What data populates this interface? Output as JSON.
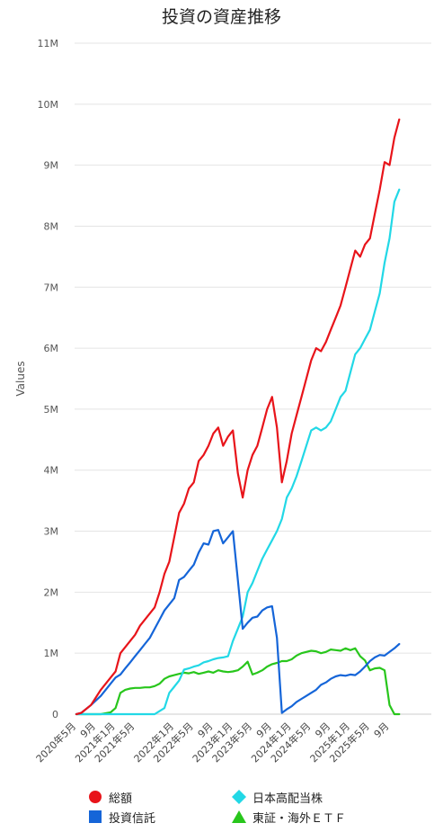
{
  "chart_data": {
    "type": "line",
    "title": "投資の資産推移",
    "ylabel": "Values",
    "xlabel": "",
    "ylim": [
      0,
      11000000
    ],
    "y_ticks": [
      "0",
      "1M",
      "2M",
      "3M",
      "4M",
      "5M",
      "6M",
      "7M",
      "8M",
      "9M",
      "10M",
      "11M"
    ],
    "x_tick_labels": [
      "2020年5月",
      "9月",
      "2021年1月",
      "2021年5月",
      "2022年1月",
      "2022年5月",
      "9月",
      "2023年1月",
      "2023年5月",
      "9月",
      "2024年1月",
      "2024年5月",
      "9月",
      "2025年1月",
      "2025年5月",
      "9月"
    ],
    "x_tick_month_index": [
      0,
      4,
      8,
      12,
      20,
      24,
      28,
      32,
      36,
      40,
      44,
      48,
      52,
      56,
      60,
      64
    ],
    "x_range_months": [
      0,
      70
    ],
    "grid": true,
    "legend_position": "bottom",
    "series": [
      {
        "name": "総額",
        "color": "#e8141a",
        "marker": "circle",
        "values": [
          [
            0,
            0
          ],
          [
            1,
            20000
          ],
          [
            3,
            150000
          ],
          [
            5,
            400000
          ],
          [
            7,
            600000
          ],
          [
            8,
            700000
          ],
          [
            9,
            1000000
          ],
          [
            10,
            1100000
          ],
          [
            11,
            1200000
          ],
          [
            12,
            1300000
          ],
          [
            13,
            1450000
          ],
          [
            14,
            1550000
          ],
          [
            15,
            1650000
          ],
          [
            16,
            1750000
          ],
          [
            17,
            2000000
          ],
          [
            18,
            2300000
          ],
          [
            19,
            2500000
          ],
          [
            20,
            2900000
          ],
          [
            21,
            3300000
          ],
          [
            22,
            3450000
          ],
          [
            23,
            3700000
          ],
          [
            24,
            3800000
          ],
          [
            25,
            4150000
          ],
          [
            26,
            4250000
          ],
          [
            27,
            4400000
          ],
          [
            28,
            4600000
          ],
          [
            29,
            4700000
          ],
          [
            30,
            4400000
          ],
          [
            31,
            4550000
          ],
          [
            32,
            4650000
          ],
          [
            33,
            3950000
          ],
          [
            34,
            3550000
          ],
          [
            35,
            4000000
          ],
          [
            36,
            4250000
          ],
          [
            37,
            4400000
          ],
          [
            38,
            4700000
          ],
          [
            39,
            5000000
          ],
          [
            40,
            5200000
          ],
          [
            41,
            4700000
          ],
          [
            42,
            3800000
          ],
          [
            43,
            4150000
          ],
          [
            44,
            4600000
          ],
          [
            45,
            4900000
          ],
          [
            46,
            5200000
          ],
          [
            47,
            5500000
          ],
          [
            48,
            5800000
          ],
          [
            49,
            6000000
          ],
          [
            50,
            5950000
          ],
          [
            51,
            6100000
          ],
          [
            52,
            6300000
          ],
          [
            53,
            6500000
          ],
          [
            54,
            6700000
          ],
          [
            55,
            7000000
          ],
          [
            56,
            7300000
          ],
          [
            57,
            7600000
          ],
          [
            58,
            7500000
          ],
          [
            59,
            7700000
          ],
          [
            60,
            7800000
          ],
          [
            61,
            8200000
          ],
          [
            62,
            8600000
          ],
          [
            63,
            9050000
          ],
          [
            64,
            9000000
          ],
          [
            65,
            9450000
          ],
          [
            66,
            9750000
          ]
        ]
      },
      {
        "name": "投資信託",
        "color": "#1565d8",
        "marker": "square",
        "values": [
          [
            0,
            0
          ],
          [
            1,
            20000
          ],
          [
            3,
            150000
          ],
          [
            5,
            300000
          ],
          [
            7,
            500000
          ],
          [
            8,
            600000
          ],
          [
            9,
            650000
          ],
          [
            10,
            750000
          ],
          [
            11,
            850000
          ],
          [
            12,
            950000
          ],
          [
            13,
            1050000
          ],
          [
            14,
            1150000
          ],
          [
            15,
            1250000
          ],
          [
            16,
            1400000
          ],
          [
            17,
            1550000
          ],
          [
            18,
            1700000
          ],
          [
            19,
            1800000
          ],
          [
            20,
            1900000
          ],
          [
            21,
            2200000
          ],
          [
            22,
            2250000
          ],
          [
            23,
            2350000
          ],
          [
            24,
            2450000
          ],
          [
            25,
            2650000
          ],
          [
            26,
            2800000
          ],
          [
            27,
            2780000
          ],
          [
            28,
            3000000
          ],
          [
            29,
            3020000
          ],
          [
            30,
            2800000
          ],
          [
            31,
            2900000
          ],
          [
            32,
            3000000
          ],
          [
            33,
            2200000
          ],
          [
            34,
            1400000
          ],
          [
            35,
            1500000
          ],
          [
            36,
            1580000
          ],
          [
            37,
            1600000
          ],
          [
            38,
            1700000
          ],
          [
            39,
            1750000
          ],
          [
            40,
            1770000
          ],
          [
            41,
            1250000
          ],
          [
            42,
            20000
          ],
          [
            43,
            80000
          ],
          [
            44,
            130000
          ],
          [
            45,
            200000
          ],
          [
            46,
            250000
          ],
          [
            47,
            300000
          ],
          [
            48,
            350000
          ],
          [
            49,
            400000
          ],
          [
            50,
            480000
          ],
          [
            51,
            520000
          ],
          [
            52,
            580000
          ],
          [
            53,
            620000
          ],
          [
            54,
            640000
          ],
          [
            55,
            630000
          ],
          [
            56,
            650000
          ],
          [
            57,
            640000
          ],
          [
            58,
            700000
          ],
          [
            59,
            780000
          ],
          [
            60,
            870000
          ],
          [
            61,
            930000
          ],
          [
            62,
            970000
          ],
          [
            63,
            960000
          ],
          [
            64,
            1020000
          ],
          [
            65,
            1080000
          ],
          [
            66,
            1150000
          ]
        ]
      },
      {
        "name": "日本高配当株",
        "color": "#22d8e6",
        "marker": "diamond",
        "values": [
          [
            0,
            0
          ],
          [
            14,
            0
          ],
          [
            16,
            0
          ],
          [
            17,
            50000
          ],
          [
            18,
            100000
          ],
          [
            19,
            350000
          ],
          [
            20,
            450000
          ],
          [
            21,
            550000
          ],
          [
            22,
            730000
          ],
          [
            23,
            750000
          ],
          [
            24,
            780000
          ],
          [
            25,
            800000
          ],
          [
            26,
            850000
          ],
          [
            27,
            870000
          ],
          [
            28,
            900000
          ],
          [
            29,
            920000
          ],
          [
            30,
            930000
          ],
          [
            31,
            950000
          ],
          [
            32,
            1200000
          ],
          [
            33,
            1400000
          ],
          [
            34,
            1600000
          ],
          [
            35,
            2000000
          ],
          [
            36,
            2150000
          ],
          [
            37,
            2350000
          ],
          [
            38,
            2550000
          ],
          [
            39,
            2700000
          ],
          [
            40,
            2850000
          ],
          [
            41,
            3000000
          ],
          [
            42,
            3200000
          ],
          [
            43,
            3550000
          ],
          [
            44,
            3700000
          ],
          [
            45,
            3900000
          ],
          [
            46,
            4150000
          ],
          [
            47,
            4400000
          ],
          [
            48,
            4650000
          ],
          [
            49,
            4700000
          ],
          [
            50,
            4650000
          ],
          [
            51,
            4700000
          ],
          [
            52,
            4800000
          ],
          [
            53,
            5000000
          ],
          [
            54,
            5200000
          ],
          [
            55,
            5300000
          ],
          [
            56,
            5600000
          ],
          [
            57,
            5900000
          ],
          [
            58,
            6000000
          ],
          [
            59,
            6150000
          ],
          [
            60,
            6300000
          ],
          [
            61,
            6600000
          ],
          [
            62,
            6900000
          ],
          [
            63,
            7400000
          ],
          [
            64,
            7800000
          ],
          [
            65,
            8400000
          ],
          [
            66,
            8600000
          ]
        ]
      },
      {
        "name": "東証・海外ＥＴＦ",
        "color": "#28c61c",
        "marker": "triangle",
        "values": [
          [
            0,
            0
          ],
          [
            5,
            0
          ],
          [
            7,
            30000
          ],
          [
            8,
            100000
          ],
          [
            9,
            350000
          ],
          [
            10,
            400000
          ],
          [
            11,
            420000
          ],
          [
            12,
            430000
          ],
          [
            13,
            430000
          ],
          [
            14,
            440000
          ],
          [
            15,
            440000
          ],
          [
            16,
            460000
          ],
          [
            17,
            500000
          ],
          [
            18,
            580000
          ],
          [
            19,
            620000
          ],
          [
            20,
            640000
          ],
          [
            21,
            660000
          ],
          [
            22,
            680000
          ],
          [
            23,
            670000
          ],
          [
            24,
            690000
          ],
          [
            25,
            660000
          ],
          [
            26,
            680000
          ],
          [
            27,
            700000
          ],
          [
            28,
            680000
          ],
          [
            29,
            720000
          ],
          [
            30,
            700000
          ],
          [
            31,
            690000
          ],
          [
            32,
            700000
          ],
          [
            33,
            720000
          ],
          [
            34,
            780000
          ],
          [
            35,
            860000
          ],
          [
            36,
            650000
          ],
          [
            37,
            680000
          ],
          [
            38,
            720000
          ],
          [
            39,
            780000
          ],
          [
            40,
            820000
          ],
          [
            41,
            840000
          ],
          [
            42,
            870000
          ],
          [
            43,
            870000
          ],
          [
            44,
            900000
          ],
          [
            45,
            960000
          ],
          [
            46,
            1000000
          ],
          [
            47,
            1020000
          ],
          [
            48,
            1040000
          ],
          [
            49,
            1030000
          ],
          [
            50,
            1000000
          ],
          [
            51,
            1020000
          ],
          [
            52,
            1060000
          ],
          [
            53,
            1050000
          ],
          [
            54,
            1040000
          ],
          [
            55,
            1080000
          ],
          [
            56,
            1050000
          ],
          [
            57,
            1080000
          ],
          [
            58,
            950000
          ],
          [
            59,
            880000
          ],
          [
            60,
            720000
          ],
          [
            61,
            750000
          ],
          [
            62,
            760000
          ],
          [
            63,
            720000
          ],
          [
            64,
            150000
          ],
          [
            65,
            0
          ],
          [
            66,
            0
          ]
        ]
      }
    ]
  }
}
